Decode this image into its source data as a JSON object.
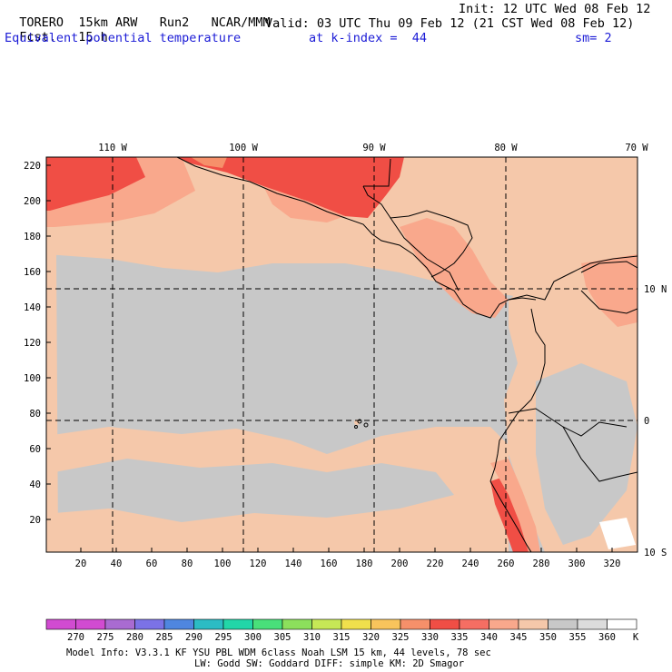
{
  "header": {
    "model": "TORERO",
    "resolution": "15km ARW",
    "run": "Run2",
    "org": "NCAR/MMM",
    "init": "Init: 12 UTC Wed 08 Feb 12",
    "fcst_label": "Fcst.",
    "fcst_value": "15 h",
    "valid": "Valid: 03 UTC Thu 09 Feb 12 (21 CST Wed 08 Feb 12)",
    "field": "Equivalent potential temperature",
    "level": "at k-index =  44",
    "smoothing": "sm= 2"
  },
  "map": {
    "lon_labels": [
      "110 W",
      "100 W",
      "90 W",
      "80 W",
      "70 W"
    ],
    "lat_labels": [
      "10 N",
      "0",
      "10 S"
    ],
    "y_ticks": [
      "220",
      "200",
      "180",
      "160",
      "140",
      "120",
      "100",
      "80",
      "60",
      "40",
      "20"
    ],
    "x_ticks": [
      "20",
      "40",
      "60",
      "80",
      "100",
      "120",
      "140",
      "160",
      "180",
      "200",
      "220",
      "240",
      "260",
      "280",
      "300",
      "320"
    ],
    "colors": {
      "background_345_350": "#c8c8c8",
      "band_340_345": "#f5c8aa",
      "band_335_340": "#f9a88c",
      "band_330_335": "#f56e63",
      "band_325_330": "#f04e45",
      "band_350_355": "#dcdcdc",
      "coastline": "#000000"
    }
  },
  "colorbar": {
    "labels": [
      "270",
      "275",
      "280",
      "285",
      "290",
      "295",
      "300",
      "305",
      "310",
      "315",
      "320",
      "325",
      "330",
      "335",
      "340",
      "345",
      "350",
      "355",
      "360"
    ],
    "unit": "K",
    "colors": [
      "#d14bd1",
      "#a96bd1",
      "#7b72e6",
      "#4f86e0",
      "#2cbcc4",
      "#22d6a8",
      "#49e07a",
      "#8ce05c",
      "#c6e856",
      "#f0e04c",
      "#f8c45c",
      "#f6906a",
      "#f04e45",
      "#f56e63",
      "#f9a88c",
      "#f5c8aa",
      "#c8c8c8",
      "#dcdcdc",
      "#ffffff"
    ]
  },
  "footer": {
    "line1": "Model Info: V3.3.1   KF      YSU PBL  WDM 6class  Noah LSM  15 km,   44 levels,   78 sec",
    "line2": "LW: Godd SW: Goddard DIFF: simple KM: 2D Smagor"
  }
}
